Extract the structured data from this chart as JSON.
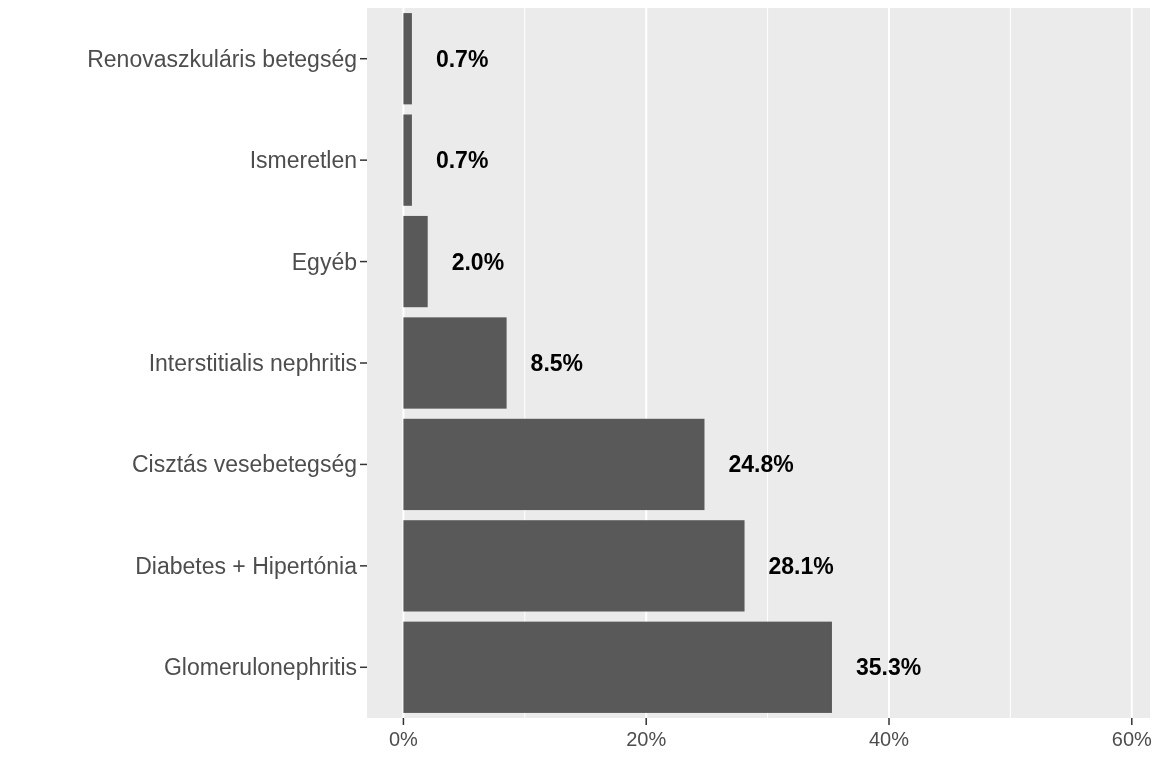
{
  "chart_data": {
    "type": "bar",
    "orientation": "horizontal",
    "categories": [
      "Renovaszkuláris betegség",
      "Ismeretlen",
      "Egyéb",
      "Interstitialis nephritis",
      "Cisztás vesebetegség",
      "Diabetes + Hipertónia",
      "Glomerulonephritis"
    ],
    "values": [
      0.7,
      0.7,
      2.0,
      8.5,
      24.8,
      28.1,
      35.3
    ],
    "value_labels": [
      "0.7%",
      "0.7%",
      "2.0%",
      "8.5%",
      "24.8%",
      "28.1%",
      "35.3%"
    ],
    "color": "#595959",
    "xlim": [
      -3,
      61.5
    ],
    "xticks": [
      {
        "value": 0,
        "label": "0%"
      },
      {
        "value": 10,
        "label": null
      },
      {
        "value": 20,
        "label": "20%"
      },
      {
        "value": 30,
        "label": null
      },
      {
        "value": 40,
        "label": "40%"
      },
      {
        "value": 50,
        "label": null
      },
      {
        "value": 60,
        "label": "60%"
      }
    ],
    "grid": "x"
  }
}
